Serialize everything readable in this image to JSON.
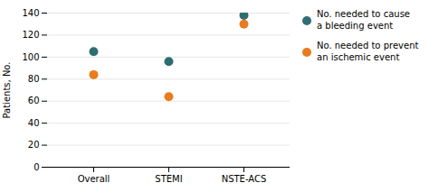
{
  "chart_data": {
    "type": "scatter",
    "categories": [
      "Overall",
      "STEMI",
      "NSTE-ACS"
    ],
    "series": [
      {
        "name": "No. needed to cause\na bleeding event",
        "color": "#2E6E72",
        "values": [
          105,
          96,
          138
        ]
      },
      {
        "name": "No. needed to prevent\nan ischemic event",
        "color": "#E87C1E",
        "values": [
          84,
          64,
          130
        ]
      }
    ],
    "ylabel": "Patients, No.",
    "ylim": [
      0,
      140
    ],
    "yticks": [
      0,
      20,
      40,
      60,
      80,
      100,
      120,
      140
    ],
    "grid": true,
    "legend": "right",
    "marker": "circle"
  }
}
